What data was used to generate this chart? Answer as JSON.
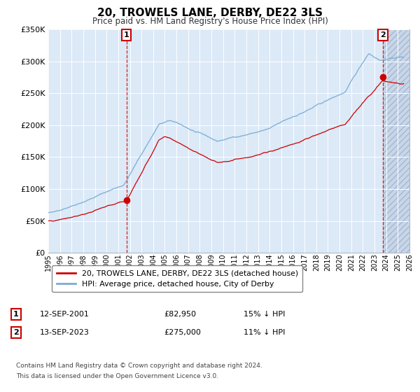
{
  "title": "20, TROWELS LANE, DERBY, DE22 3LS",
  "subtitle": "Price paid vs. HM Land Registry's House Price Index (HPI)",
  "legend_label_red": "20, TROWELS LANE, DERBY, DE22 3LS (detached house)",
  "legend_label_blue": "HPI: Average price, detached house, City of Derby",
  "sale1_date": "12-SEP-2001",
  "sale1_price": "£82,950",
  "sale1_hpi": "15% ↓ HPI",
  "sale1_label": "1",
  "sale1_year": 2001.71,
  "sale1_value": 82950,
  "sale2_date": "13-SEP-2023",
  "sale2_price": "£275,000",
  "sale2_hpi": "11% ↓ HPI",
  "sale2_label": "2",
  "sale2_year": 2023.71,
  "sale2_value": 275000,
  "ytick_vals": [
    0,
    50000,
    100000,
    150000,
    200000,
    250000,
    300000,
    350000
  ],
  "xmin": 1995,
  "xmax": 2026,
  "ymin": 0,
  "ymax": 350000,
  "bg_color": "#dce9f7",
  "grid_color": "#ffffff",
  "red_color": "#cc0000",
  "blue_color": "#7aadd4",
  "hatch_bg": "#cdd8e8",
  "footnote1": "Contains HM Land Registry data © Crown copyright and database right 2024.",
  "footnote2": "This data is licensed under the Open Government Licence v3.0."
}
